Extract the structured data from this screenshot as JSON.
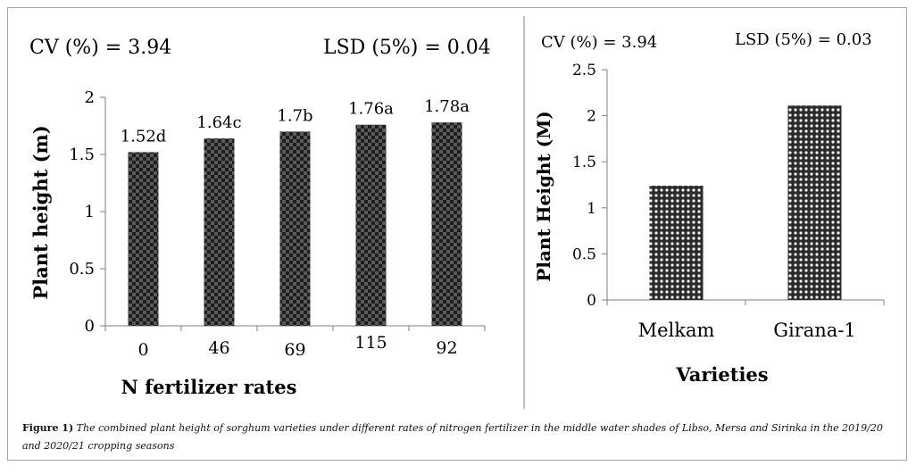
{
  "chart_data": [
    {
      "type": "bar",
      "annotations": {
        "cv": "CV (%) = 3.94",
        "lsd": "LSD (5%) = 0.04"
      },
      "categories": [
        "0",
        "46",
        "69",
        "115",
        "92"
      ],
      "values": [
        1.52,
        1.64,
        1.7,
        1.76,
        1.78
      ],
      "data_labels": [
        "1.52d",
        "1.64c",
        "1.7b",
        "1.76a",
        "1.78a"
      ],
      "ylabel": "Plant height (m)",
      "xlabel": "N fertilizer rates",
      "ylim": [
        0,
        2
      ],
      "yticks": [
        "0",
        "0.5",
        "1",
        "1.5",
        "2"
      ],
      "bar_pattern": "checkerboard",
      "bar_color": "#3a3a3a",
      "grid": false
    },
    {
      "type": "bar",
      "annotations": {
        "cv": "CV (%) = 3.94",
        "lsd": "LSD (5%) = 0.03"
      },
      "categories": [
        "Melkam",
        "Girana-1"
      ],
      "values": [
        1.24,
        2.11
      ],
      "ylabel": "Plant Height (M)",
      "xlabel": "Varieties",
      "ylim": [
        0,
        2.5
      ],
      "yticks": [
        "0",
        "0.5",
        "1",
        "1.5",
        "2",
        "2.5"
      ],
      "bar_pattern": "dots",
      "bar_color": "#3a3a3a",
      "grid": false
    }
  ],
  "caption": {
    "label": "Figure 1)",
    "text": "The combined plant height of sorghum varieties under different rates of nitrogen fertilizer in the middle water shades of Libso, Mersa and Sirinka in the 2019/20 and 2020/21 cropping seasons"
  }
}
